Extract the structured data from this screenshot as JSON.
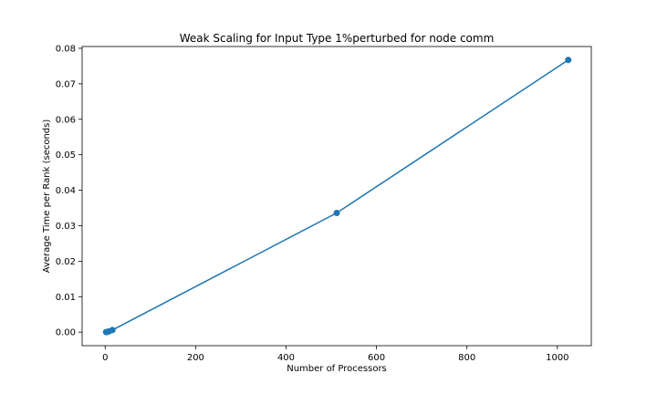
{
  "chart_data": {
    "type": "line",
    "title": "Weak Scaling for Input Type 1%perturbed for node comm",
    "xlabel": "Number of Processors",
    "ylabel": "Average Time per Rank (seconds)",
    "xlim": [
      -51,
      1075
    ],
    "ylim": [
      -0.0038,
      0.0805
    ],
    "x_ticks": [
      0,
      200,
      400,
      600,
      800,
      1000
    ],
    "y_ticks": [
      0.0,
      0.01,
      0.02,
      0.03,
      0.04,
      0.05,
      0.06,
      0.07,
      0.08
    ],
    "x_tick_labels": [
      "0",
      "200",
      "400",
      "600",
      "800",
      "1000"
    ],
    "y_tick_labels": [
      "0.00",
      "0.01",
      "0.02",
      "0.03",
      "0.04",
      "0.05",
      "0.06",
      "0.07",
      "0.08"
    ],
    "grid": false,
    "series": [
      {
        "color": "#1f77b4",
        "marker": "circle",
        "x": [
          2,
          4,
          8,
          16,
          512,
          1024
        ],
        "y": [
          2e-05,
          5e-05,
          0.0002,
          0.0006,
          0.0336,
          0.0767
        ]
      }
    ]
  }
}
